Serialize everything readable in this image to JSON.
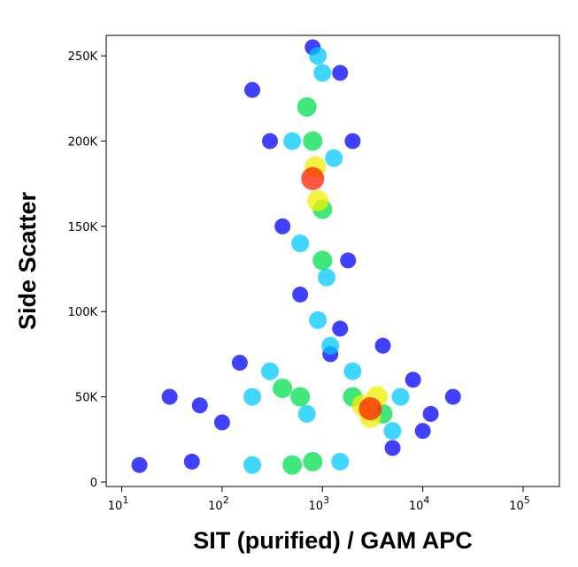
{
  "chart_data": {
    "type": "density",
    "xlabel": "SIT (purified) / GAM APC",
    "ylabel": "Side Scatter",
    "xscale": "log",
    "xlim": [
      7,
      230000
    ],
    "ylim": [
      -2600,
      262000
    ],
    "xticks": [
      {
        "value": 10,
        "label": "10",
        "sup": "1"
      },
      {
        "value": 100,
        "label": "10",
        "sup": "2"
      },
      {
        "value": 1000,
        "label": "10",
        "sup": "3"
      },
      {
        "value": 10000,
        "label": "10",
        "sup": "4"
      },
      {
        "value": 100000,
        "label": "10",
        "sup": "5"
      }
    ],
    "yticks": [
      0,
      {
        "value": 50000,
        "label": "50K"
      },
      {
        "value": 100000,
        "label": "100K"
      },
      {
        "value": 150000,
        "label": "150K"
      },
      {
        "value": 200000,
        "label": "200K"
      },
      {
        "value": 250000,
        "label": "250K"
      }
    ],
    "level_colors": [
      "#0000ff",
      "#00c8ff",
      "#00e050",
      "#f0f000",
      "#ff2000"
    ],
    "points": {
      "x": [
        200,
        1500,
        400,
        1800,
        600,
        1500,
        30,
        60,
        100,
        8000,
        12000,
        20000,
        15,
        50,
        5000,
        1200,
        800,
        300,
        2000,
        10000,
        150,
        4000,
        500,
        1300,
        600,
        1100,
        900,
        1200,
        200,
        300,
        700,
        6000,
        2000,
        5000,
        200,
        1500,
        1000,
        900,
        700,
        1000,
        800,
        400,
        600,
        2000,
        4000,
        500,
        800,
        1000,
        850,
        900,
        2500,
        3500,
        3000,
        800,
        3000
      ],
      "y": [
        230000,
        240000,
        150000,
        130000,
        110000,
        90000,
        50000,
        45000,
        35000,
        60000,
        40000,
        50000,
        10000,
        12000,
        20000,
        75000,
        255000,
        200000,
        200000,
        30000,
        70000,
        80000,
        200000,
        190000,
        140000,
        120000,
        95000,
        80000,
        50000,
        65000,
        40000,
        50000,
        65000,
        30000,
        10000,
        12000,
        240000,
        250000,
        220000,
        160000,
        200000,
        55000,
        50000,
        50000,
        40000,
        10000,
        12000,
        130000,
        185000,
        165000,
        45000,
        50000,
        38000,
        178000,
        43000
      ],
      "level": [
        0,
        0,
        0,
        0,
        0,
        0,
        0,
        0,
        0,
        0,
        0,
        0,
        0,
        0,
        0,
        0,
        0,
        0,
        0,
        0,
        0,
        0,
        1,
        1,
        1,
        1,
        1,
        1,
        1,
        1,
        1,
        1,
        1,
        1,
        1,
        1,
        1,
        1,
        2,
        2,
        2,
        2,
        2,
        2,
        2,
        2,
        2,
        2,
        3,
        3,
        3,
        3,
        3,
        4,
        4
      ]
    }
  }
}
